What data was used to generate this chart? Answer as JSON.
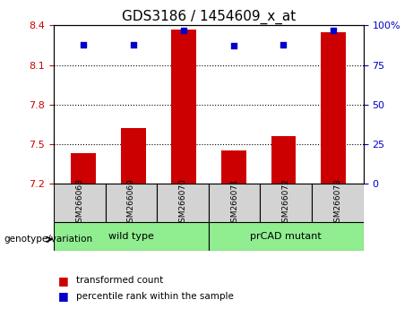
{
  "title": "GDS3186 / 1454609_x_at",
  "samples": [
    "GSM266068",
    "GSM266069",
    "GSM266070",
    "GSM266071",
    "GSM266072",
    "GSM266073"
  ],
  "transformed_counts": [
    7.43,
    7.62,
    8.37,
    7.45,
    7.56,
    8.35
  ],
  "percentile_ranks": [
    88,
    88,
    97,
    87,
    88,
    97
  ],
  "ylim_left": [
    7.2,
    8.4
  ],
  "ylim_right": [
    0,
    100
  ],
  "yticks_left": [
    7.2,
    7.5,
    7.8,
    8.1,
    8.4
  ],
  "yticks_right": [
    0,
    25,
    50,
    75,
    100
  ],
  "ytick_labels_right": [
    "0",
    "25",
    "50",
    "75",
    "100%"
  ],
  "bar_color": "#CC0000",
  "dot_color": "#0000CC",
  "bar_width": 0.5,
  "background_color": "#ffffff",
  "left_tick_color": "#CC0000",
  "right_tick_color": "#0000CC",
  "sample_bg_color": "#D3D3D3",
  "group_bg_color": "#90EE90",
  "genotype_label": "genotype/variation",
  "group_labels": [
    "wild type",
    "prCAD mutant"
  ],
  "legend_items": [
    {
      "label": "transformed count",
      "color": "#CC0000"
    },
    {
      "label": "percentile rank within the sample",
      "color": "#0000CC"
    }
  ]
}
